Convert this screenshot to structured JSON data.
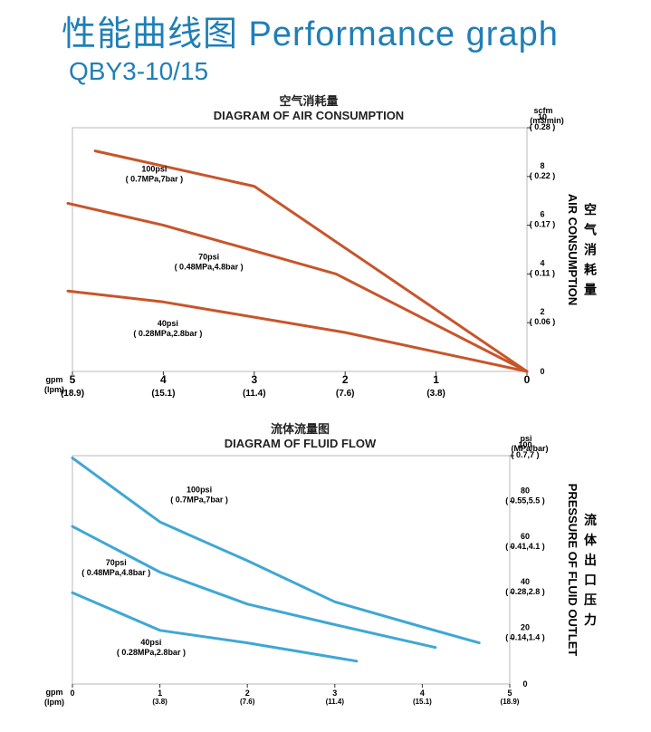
{
  "page": {
    "title": "性能曲线图 Performance graph",
    "model": "QBY3-10/15"
  },
  "chart_data": [
    {
      "type": "line",
      "title": "空气消耗量",
      "subtitle": "DIAGRAM OF AIR CONSUMPTION",
      "ylabel": "AIR CONSUMPTION",
      "ylabel_cn": "空气消耗量",
      "x_unit": [
        "gpm",
        "(lpm)"
      ],
      "y_unit": [
        "scfm",
        "(m3/min)"
      ],
      "x_reversed": true,
      "xlim": [
        5,
        0
      ],
      "ylim": [
        0,
        10
      ],
      "x_ticks": [
        {
          "v": 5,
          "label": "5",
          "sub": "(18.9)"
        },
        {
          "v": 4,
          "label": "4",
          "sub": "(15.1)"
        },
        {
          "v": 3,
          "label": "3",
          "sub": "(11.4)"
        },
        {
          "v": 2,
          "label": "2",
          "sub": "(7.6)"
        },
        {
          "v": 1,
          "label": "1",
          "sub": "(3.8)"
        },
        {
          "v": 0,
          "label": "0",
          "sub": ""
        }
      ],
      "y_ticks": [
        {
          "v": 10,
          "label": "10",
          "sub": "( 0.28 )"
        },
        {
          "v": 8,
          "label": "8",
          "sub": "( 0.22 )"
        },
        {
          "v": 6,
          "label": "6",
          "sub": "( 0.17 )"
        },
        {
          "v": 4,
          "label": "4",
          "sub": "( 0.11 )"
        },
        {
          "v": 2,
          "label": "2",
          "sub": "( 0.06 )"
        },
        {
          "v": 0,
          "label": "0",
          "sub": ""
        }
      ],
      "line_color": "#c8552a",
      "series": [
        {
          "name": "100psi",
          "sub": "( 0.7MPa,7bar )",
          "points": [
            [
              4.75,
              9.05
            ],
            [
              3,
              7.6
            ],
            [
              0,
              0
            ]
          ]
        },
        {
          "name": "70psi",
          "sub": "( 0.48MPa,4.8bar )",
          "points": [
            [
              5.05,
              6.9
            ],
            [
              4,
              6.0
            ],
            [
              2.1,
              4.0
            ],
            [
              0,
              0
            ]
          ]
        },
        {
          "name": "40psi",
          "sub": "( 0.28MPa,2.8bar )",
          "points": [
            [
              5.05,
              3.3
            ],
            [
              4,
              2.85
            ],
            [
              2,
              1.6
            ],
            [
              0,
              0
            ]
          ]
        }
      ]
    },
    {
      "type": "line",
      "title": "流体流量图",
      "subtitle": "DIAGRAM OF FLUID FLOW",
      "ylabel": "PRESSURE OF FLUID OUTLET",
      "ylabel_cn": "流体出口压力",
      "x_unit": [
        "gpm",
        "(lpm)"
      ],
      "y_unit": [
        "psi",
        "(MPa/bar)"
      ],
      "x_reversed": false,
      "xlim": [
        0,
        5
      ],
      "ylim": [
        0,
        100
      ],
      "x_ticks": [
        {
          "v": 0,
          "label": "0",
          "sub": ""
        },
        {
          "v": 1,
          "label": "1",
          "sub": "(3.8)"
        },
        {
          "v": 2,
          "label": "2",
          "sub": "(7.6)"
        },
        {
          "v": 3,
          "label": "3",
          "sub": "(11.4)"
        },
        {
          "v": 4,
          "label": "4",
          "sub": "(15.1)"
        },
        {
          "v": 5,
          "label": "5",
          "sub": "(18.9)"
        }
      ],
      "y_ticks": [
        {
          "v": 100,
          "label": "100",
          "sub": "( 0.7,7 )"
        },
        {
          "v": 80,
          "label": "80",
          "sub": "( 0.55,5.5 )"
        },
        {
          "v": 60,
          "label": "60",
          "sub": "( 0.41,4.1 )"
        },
        {
          "v": 40,
          "label": "40",
          "sub": "( 0.28,2.8 )"
        },
        {
          "v": 20,
          "label": "20",
          "sub": "( 0.14,1.4 )"
        },
        {
          "v": 0,
          "label": "0",
          "sub": ""
        }
      ],
      "line_color": "#3fa7d6",
      "series": [
        {
          "name": "100psi",
          "sub": "( 0.7MPa,7bar )",
          "points": [
            [
              0,
              99
            ],
            [
              1,
              71
            ],
            [
              2,
              54
            ],
            [
              3,
              36
            ],
            [
              4,
              25
            ],
            [
              4.65,
              18
            ]
          ]
        },
        {
          "name": "70psi",
          "sub": "( 0.48MPa,4.8bar )",
          "points": [
            [
              0,
              69
            ],
            [
              1,
              49
            ],
            [
              2,
              35
            ],
            [
              3,
              26
            ],
            [
              4.15,
              16
            ]
          ]
        },
        {
          "name": "40psi",
          "sub": "( 0.28MPa,2.8bar )",
          "points": [
            [
              0,
              40
            ],
            [
              1,
              23.5
            ],
            [
              2,
              18
            ],
            [
              3.25,
              10
            ]
          ]
        }
      ]
    }
  ]
}
